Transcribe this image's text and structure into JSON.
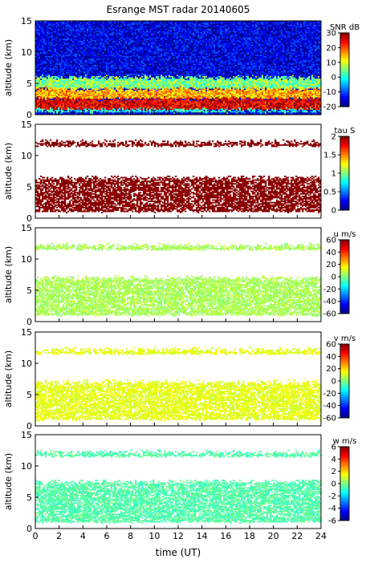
{
  "figure": {
    "title": "Esrange MST radar 20140605",
    "xlabel": "time (UT)",
    "xticks": [
      "0",
      "2",
      "4",
      "6",
      "8",
      "10",
      "12",
      "14",
      "16",
      "18",
      "20",
      "22",
      "24"
    ]
  },
  "chart_data": [
    {
      "type": "heatmap",
      "ylabel": "altitude (km)",
      "xlim": [
        0,
        24
      ],
      "ylim": [
        0,
        15
      ],
      "yticks": [
        "0",
        "5",
        "10",
        "15"
      ],
      "colorbar": {
        "label": "SNR dB",
        "range": [
          -20,
          30
        ],
        "ticks": [
          "30",
          "20",
          "10",
          "0",
          "-10",
          "-20"
        ]
      },
      "description_bands": [
        {
          "alt": [
            0.4,
            0.8
          ],
          "value": 0
        },
        {
          "alt": [
            0.8,
            2.6
          ],
          "value": 25
        },
        {
          "alt": [
            2.6,
            4.2
          ],
          "value": 15
        },
        {
          "alt": [
            4.2,
            6.0
          ],
          "value": 5
        },
        {
          "alt": [
            6.0,
            15
          ],
          "value": -15
        }
      ]
    },
    {
      "type": "heatmap",
      "ylabel": "altitude (km)",
      "xlim": [
        0,
        24
      ],
      "ylim": [
        0,
        15
      ],
      "yticks": [
        "0",
        "5",
        "10",
        "15"
      ],
      "colorbar": {
        "label": "tau S",
        "range": [
          0,
          2
        ],
        "ticks": [
          "2",
          "1.5",
          "1",
          "0.5",
          "0"
        ]
      },
      "description_bands": [
        {
          "alt": [
            1.0,
            6.5
          ],
          "value": 2.0
        },
        {
          "alt": [
            11.5,
            12.2
          ],
          "value": 2.0
        }
      ]
    },
    {
      "type": "heatmap",
      "ylabel": "altitude (km)",
      "xlim": [
        0,
        24
      ],
      "ylim": [
        0,
        15
      ],
      "yticks": [
        "0",
        "5",
        "10",
        "15"
      ],
      "colorbar": {
        "label": "u m/s",
        "range": [
          -60,
          60
        ],
        "ticks": [
          "60",
          "40",
          "20",
          "0",
          "-20",
          "-40",
          "-60"
        ]
      },
      "description_bands": [
        {
          "alt": [
            1.0,
            7.0
          ],
          "value": 5
        },
        {
          "alt": [
            11.5,
            12.2
          ],
          "value": 5
        }
      ]
    },
    {
      "type": "heatmap",
      "ylabel": "altitude (km)",
      "xlim": [
        0,
        24
      ],
      "ylim": [
        0,
        15
      ],
      "yticks": [
        "0",
        "5",
        "10",
        "15"
      ],
      "colorbar": {
        "label": "v m/s",
        "range": [
          -60,
          60
        ],
        "ticks": [
          "60",
          "40",
          "20",
          "0",
          "-20",
          "-40",
          "-60"
        ]
      },
      "description_bands": [
        {
          "alt": [
            1.0,
            7.0
          ],
          "value": 12
        },
        {
          "alt": [
            11.5,
            12.2
          ],
          "value": 12
        }
      ]
    },
    {
      "type": "heatmap",
      "ylabel": "altitude (km)",
      "xlim": [
        0,
        24
      ],
      "ylim": [
        0,
        15
      ],
      "yticks": [
        "0",
        "5",
        "10",
        "15"
      ],
      "colorbar": {
        "label": "w m/s",
        "range": [
          -6,
          6
        ],
        "ticks": [
          "6",
          "4",
          "2",
          "0",
          "-2",
          "-4",
          "-6"
        ]
      },
      "description_bands": [
        {
          "alt": [
            1.0,
            7.5
          ],
          "value": -0.5
        },
        {
          "alt": [
            11.5,
            12.2
          ],
          "value": -0.5
        }
      ]
    }
  ]
}
